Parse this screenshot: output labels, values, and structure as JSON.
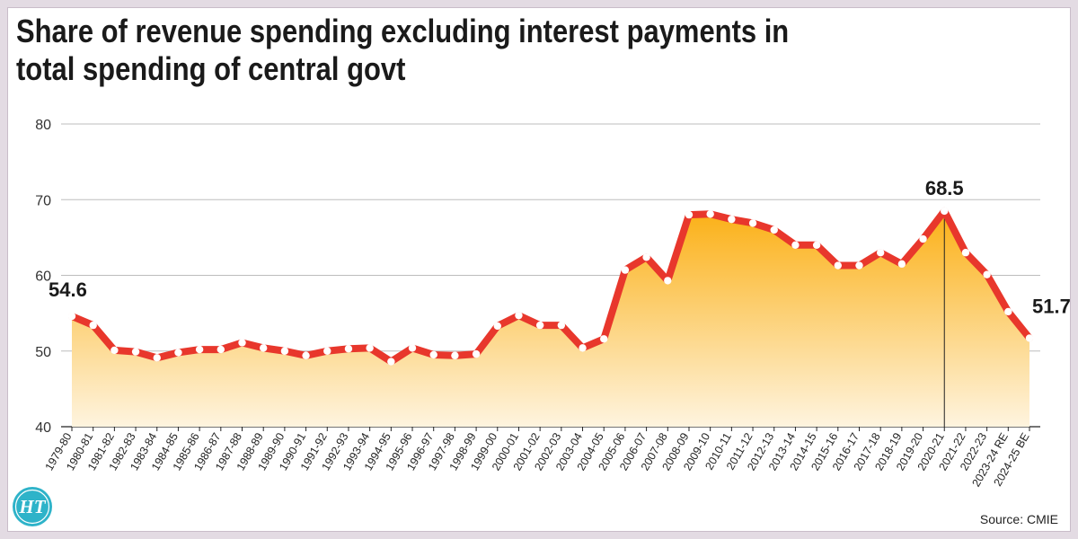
{
  "title_lines": [
    "Share of revenue spending excluding interest payments in",
    "total spending of central govt"
  ],
  "source": "Source: CMIE",
  "logo_text": "HT",
  "colors": {
    "line": "#e8372c",
    "fill_top": "#fbb016",
    "fill_bottom": "#fef4df",
    "grid": "#bdbdbd",
    "marker": "#ffffff",
    "logo": "#2eb3c9"
  },
  "chart_data": {
    "type": "area",
    "title": "Share of revenue spending excluding interest payments in total spending of central govt",
    "xlabel": "",
    "ylabel": "",
    "ylim": [
      40,
      80
    ],
    "yticks": [
      40,
      50,
      60,
      70,
      80
    ],
    "grid": true,
    "categories": [
      "1979-80",
      "1980-81",
      "1981-82",
      "1982-83",
      "1983-84",
      "1984-85",
      "1985-86",
      "1986-87",
      "1987-88",
      "1988-89",
      "1989-90",
      "1990-91",
      "1991-92",
      "1992-93",
      "1993-94",
      "1994-95",
      "1995-96",
      "1996-97",
      "1997-98",
      "1998-99",
      "1999-00",
      "2000-01",
      "2001-02",
      "2002-03",
      "2003-04",
      "2004-05",
      "2005-06",
      "2006-07",
      "2007-08",
      "2008-09",
      "2009-10",
      "2010-11",
      "2011-12",
      "2012-13",
      "2013-14",
      "2014-15",
      "2015-16",
      "2016-17",
      "2017-18",
      "2018-19",
      "2019-20",
      "2020-21",
      "2021-22",
      "2022-23",
      "2023-24 RE",
      "2024-25 BE"
    ],
    "series": [
      {
        "values": [
          54.6,
          53.4,
          50.1,
          49.9,
          49.1,
          49.8,
          50.2,
          50.2,
          51.1,
          50.4,
          50.0,
          49.4,
          50.0,
          50.3,
          50.4,
          48.6,
          50.4,
          49.5,
          49.4,
          49.6,
          53.3,
          54.7,
          53.4,
          53.4,
          50.4,
          51.6,
          60.7,
          62.4,
          59.3,
          68.0,
          68.1,
          67.4,
          66.9,
          66.0,
          64.0,
          64.0,
          61.3,
          61.3,
          63.0,
          61.5,
          64.8,
          68.5,
          63.0,
          60.1,
          55.2,
          51.7
        ]
      }
    ],
    "annotations": [
      {
        "index": 0,
        "text": "54.6"
      },
      {
        "index": 41,
        "text": "68.5"
      },
      {
        "index": 45,
        "text": "51.7"
      }
    ]
  }
}
